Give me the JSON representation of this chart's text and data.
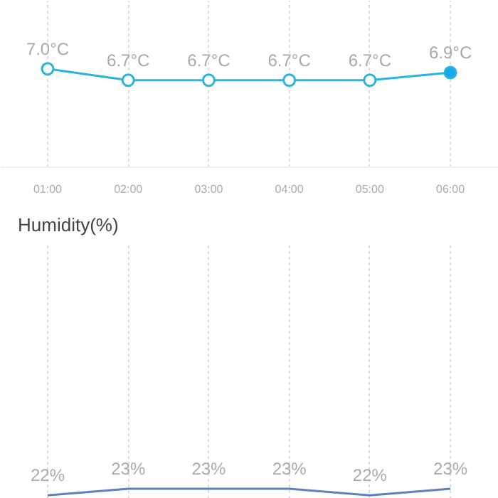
{
  "chart_data": [
    {
      "type": "line",
      "categories": [
        "01:00",
        "02:00",
        "03:00",
        "04:00",
        "05:00",
        "06:00"
      ],
      "series": [
        {
          "color": "#29b4de",
          "values": [
            7.0,
            6.7,
            6.7,
            6.7,
            6.7,
            6.9
          ],
          "value_labels": [
            "7.0°C",
            "6.7°C",
            "6.7°C",
            "6.7°C",
            "6.7°C",
            "6.9°C"
          ],
          "colors": [
            "#ffffff",
            "#ffffff",
            "#ffffff",
            "#ffffff",
            "#ffffff",
            "#12aaea"
          ]
        }
      ],
      "ylim": [
        4.4,
        8.8
      ],
      "marker": "circle",
      "grid": "x",
      "tick_labels": "x"
    },
    {
      "type": "line",
      "title": "Humidity(%)",
      "categories": [
        null,
        null,
        null,
        null,
        null,
        null
      ],
      "series": [
        {
          "color": "#5d80bd",
          "values": [
            22,
            23,
            23,
            23,
            22,
            23
          ],
          "value_labels": [
            "22%",
            "23%",
            "23%",
            "23%",
            "22%",
            "23%"
          ]
        }
      ],
      "ylim": [
        21.5,
        60
      ],
      "grid": "x",
      "tick_labels": false
    }
  ]
}
